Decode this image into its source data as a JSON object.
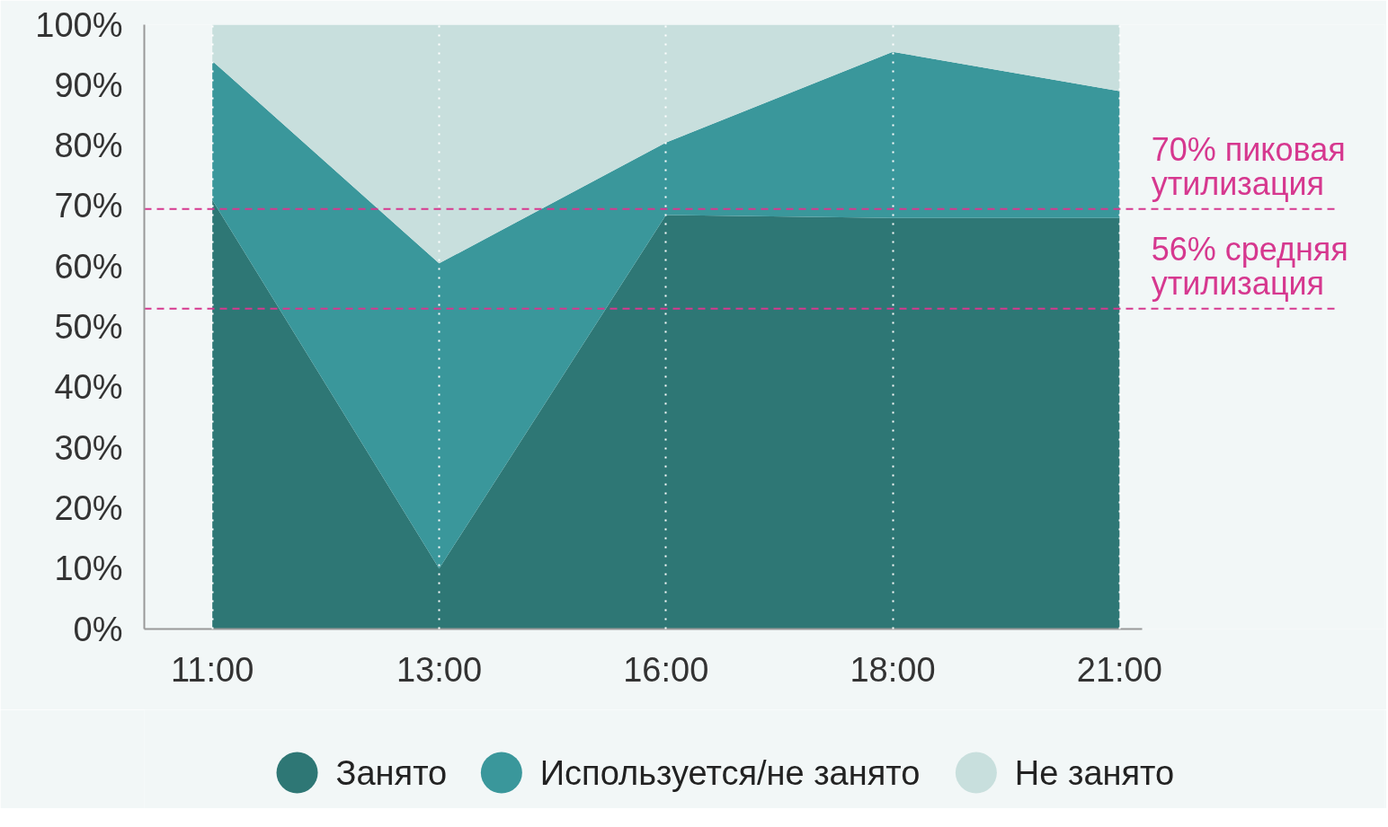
{
  "chart_data": {
    "type": "area",
    "stacked": true,
    "categories": [
      "11:00",
      "13:00",
      "16:00",
      "18:00",
      "21:00"
    ],
    "series": [
      {
        "name": "Занято",
        "color": "#2e7775",
        "values": [
          71,
          10,
          68.5,
          68,
          68
        ]
      },
      {
        "name": "Используется/не занято",
        "color": "#3a979b",
        "values": [
          23,
          50.5,
          12,
          27.5,
          21
        ]
      },
      {
        "name": "Не занято",
        "color": "#c8dfdd",
        "values": [
          6,
          39.5,
          19.5,
          4.5,
          11
        ]
      }
    ],
    "ylim": [
      0,
      100
    ],
    "yticks": [
      {
        "value": 0,
        "label": "0%"
      },
      {
        "value": 10,
        "label": "10%"
      },
      {
        "value": 20,
        "label": "20%"
      },
      {
        "value": 30,
        "label": "30%"
      },
      {
        "value": 40,
        "label": "40%"
      },
      {
        "value": 50,
        "label": "50%"
      },
      {
        "value": 60,
        "label": "60%"
      },
      {
        "value": 70,
        "label": "70%"
      },
      {
        "value": 80,
        "label": "80%"
      },
      {
        "value": 90,
        "label": "90%"
      },
      {
        "value": 100,
        "label": "100%"
      }
    ],
    "ref_lines": [
      {
        "axis": "y",
        "value": 69.5,
        "label": "70% пиковая\nутилизация",
        "color": "#d6388f",
        "line_style": "dashed"
      },
      {
        "axis": "y",
        "value": 53,
        "label": "56% средняя\nутилизация",
        "color": "#d6388f",
        "line_style": "dashed"
      }
    ],
    "grid": "x",
    "legend": "bottom"
  }
}
